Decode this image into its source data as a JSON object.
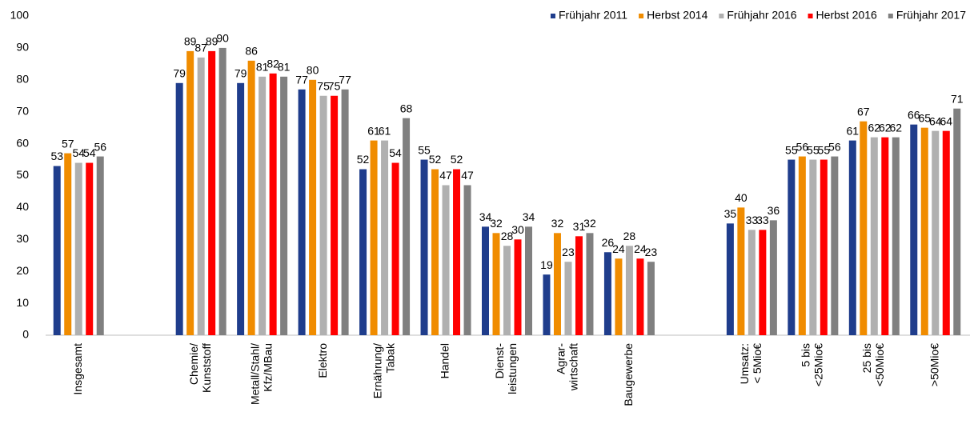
{
  "chart_data": {
    "type": "bar",
    "categories": [
      "Insgesamt",
      null,
      [
        "Chemie/",
        "Kunststoff"
      ],
      [
        "Metall/Stahl/",
        "Kfz/MBau"
      ],
      "Elektro",
      [
        "Ernährung/",
        "Tabak"
      ],
      "Handel",
      [
        "Dienst-",
        "leistungen"
      ],
      [
        "Agrar-",
        "wirtschaft"
      ],
      "Baugewerbe",
      null,
      [
        "Umsatz:",
        "< 5Mio€"
      ],
      [
        "5 bis",
        "<25Mio€"
      ],
      [
        "25 bis",
        "<50Mio€"
      ],
      ">50Mio€"
    ],
    "series": [
      {
        "name": "Frühjahr 2011",
        "color": "#1f3d8c",
        "values": [
          53,
          null,
          79,
          79,
          77,
          52,
          55,
          34,
          19,
          26,
          null,
          35,
          55,
          61,
          66
        ]
      },
      {
        "name": "Herbst 2014",
        "color": "#f08c00",
        "values": [
          57,
          null,
          89,
          86,
          80,
          61,
          52,
          32,
          32,
          24,
          null,
          40,
          56,
          67,
          65
        ]
      },
      {
        "name": "Frühjahr 2016",
        "color": "#b0b0b0",
        "values": [
          54,
          null,
          87,
          81,
          75,
          61,
          47,
          28,
          23,
          28,
          null,
          33,
          55,
          62,
          64
        ]
      },
      {
        "name": "Herbst 2016",
        "color": "#ff0000",
        "values": [
          54,
          null,
          89,
          82,
          75,
          54,
          52,
          30,
          31,
          24,
          null,
          33,
          55,
          62,
          64
        ]
      },
      {
        "name": "Frühjahr 2017",
        "color": "#808080",
        "values": [
          56,
          null,
          90,
          81,
          77,
          68,
          47,
          34,
          32,
          23,
          null,
          36,
          56,
          62,
          71
        ]
      }
    ],
    "ylim": [
      0,
      100
    ],
    "yticks": [
      0,
      10,
      20,
      30,
      40,
      50,
      60,
      70,
      80,
      90,
      100
    ],
    "legend": "top-right"
  }
}
